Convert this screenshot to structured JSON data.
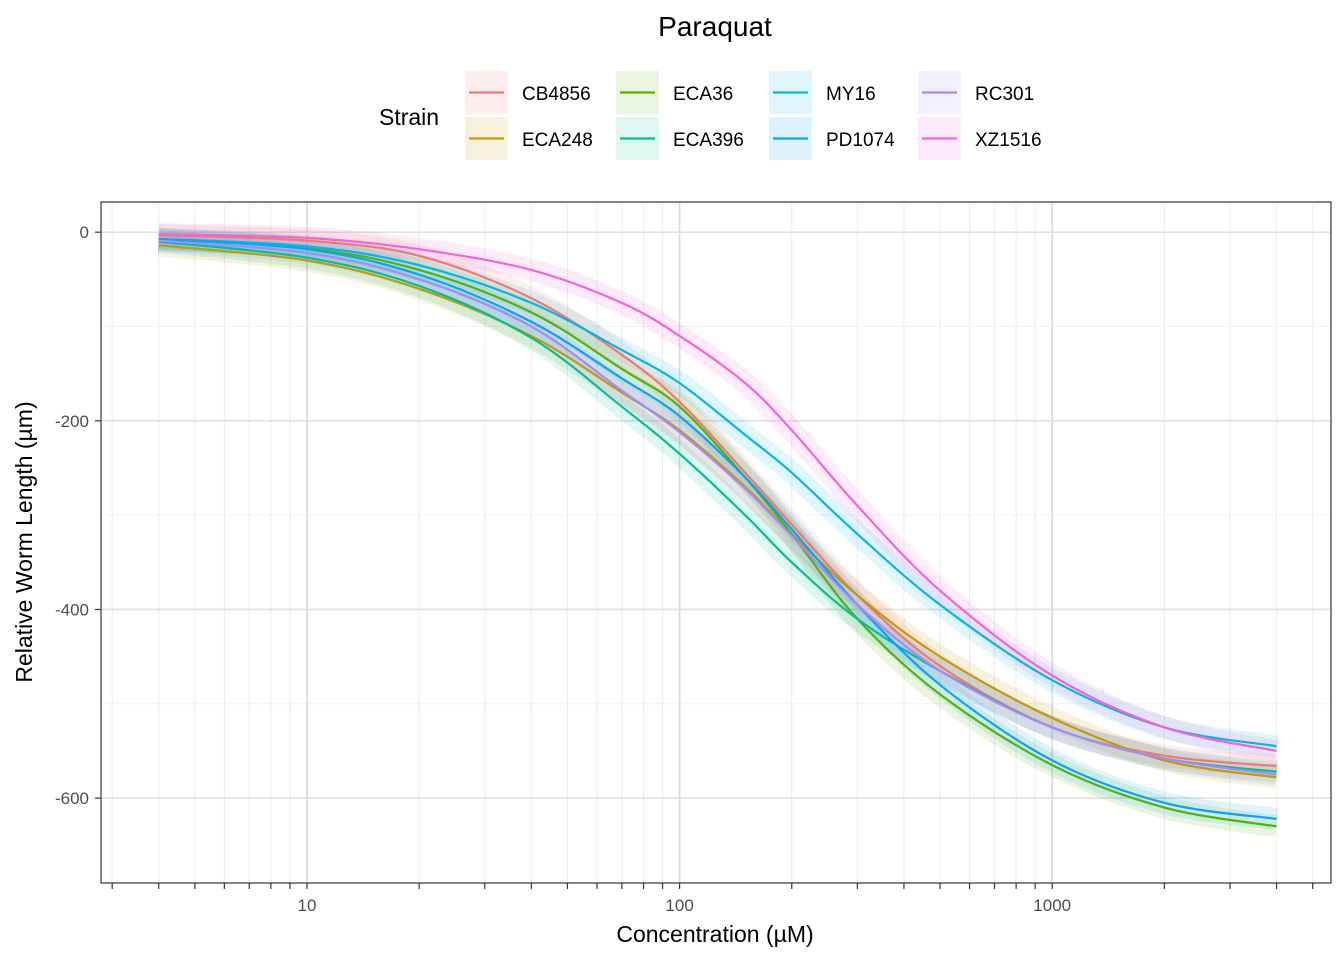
{
  "chart_data": {
    "type": "line",
    "title": "Paraquat",
    "xlabel": "Concentration (µM)",
    "ylabel": "Relative Worm Length (µm)",
    "x_scale": "log10",
    "xlim": [
      2.8,
      5600
    ],
    "ylim": [
      -690,
      32
    ],
    "x_ticks": [
      10,
      100,
      1000
    ],
    "x_tick_labels": [
      "10",
      "100",
      "1000"
    ],
    "y_ticks": [
      0,
      -200,
      -400,
      -600
    ],
    "y_tick_labels": [
      "0",
      "-200",
      "-400",
      "-600"
    ],
    "grid": true,
    "legend_title": "Strain",
    "legend_position": "top",
    "confidence_band": true,
    "series": [
      {
        "name": "CB4856",
        "color": "#F8766D",
        "x": [
          4,
          10,
          20,
          40,
          70,
          100,
          150,
          200,
          300,
          500,
          1000,
          2000,
          4000
        ],
        "y": [
          -3,
          -9,
          -25,
          -70,
          -130,
          -180,
          -255,
          -310,
          -385,
          -460,
          -525,
          -555,
          -566
        ]
      },
      {
        "name": "ECA248",
        "color": "#C49A00",
        "x": [
          4,
          10,
          20,
          40,
          70,
          100,
          150,
          200,
          300,
          500,
          1000,
          2000,
          4000
        ],
        "y": [
          -14,
          -30,
          -60,
          -110,
          -170,
          -210,
          -270,
          -320,
          -385,
          -450,
          -515,
          -560,
          -578
        ]
      },
      {
        "name": "ECA36",
        "color": "#53B400",
        "x": [
          4,
          10,
          20,
          40,
          70,
          100,
          150,
          200,
          300,
          500,
          1000,
          2000,
          4000
        ],
        "y": [
          -8,
          -17,
          -40,
          -85,
          -145,
          -185,
          -260,
          -320,
          -410,
          -490,
          -565,
          -610,
          -630
        ]
      },
      {
        "name": "ECA396",
        "color": "#00C094",
        "x": [
          4,
          10,
          20,
          40,
          70,
          100,
          150,
          200,
          300,
          500,
          1000,
          2000,
          4000
        ],
        "y": [
          -10,
          -27,
          -57,
          -112,
          -185,
          -235,
          -300,
          -350,
          -410,
          -465,
          -525,
          -558,
          -572
        ]
      },
      {
        "name": "MY16",
        "color": "#00B6EB",
        "x": [
          4,
          10,
          20,
          40,
          70,
          100,
          150,
          200,
          300,
          500,
          1000,
          2000,
          4000
        ],
        "y": [
          -7,
          -15,
          -35,
          -75,
          -125,
          -160,
          -215,
          -255,
          -320,
          -395,
          -475,
          -525,
          -545
        ]
      },
      {
        "name": "PD1074",
        "color": "#06A4FF",
        "x": [
          4,
          10,
          20,
          40,
          70,
          100,
          150,
          200,
          300,
          500,
          1000,
          2000,
          4000
        ],
        "y": [
          -7,
          -18,
          -45,
          -95,
          -155,
          -195,
          -260,
          -315,
          -395,
          -480,
          -560,
          -605,
          -622
        ]
      },
      {
        "name": "RC301",
        "color": "#A58AFF",
        "x": [
          4,
          10,
          20,
          40,
          70,
          100,
          150,
          200,
          300,
          500,
          1000,
          2000,
          4000
        ],
        "y": [
          -9,
          -22,
          -50,
          -100,
          -168,
          -212,
          -272,
          -322,
          -395,
          -465,
          -525,
          -558,
          -575
        ]
      },
      {
        "name": "XZ1516",
        "color": "#FB61D7",
        "x": [
          4,
          10,
          20,
          40,
          70,
          100,
          150,
          200,
          300,
          500,
          1000,
          2000,
          4000
        ],
        "y": [
          -2,
          -6,
          -18,
          -40,
          -75,
          -110,
          -160,
          -210,
          -290,
          -380,
          -470,
          -525,
          -550
        ]
      }
    ]
  }
}
